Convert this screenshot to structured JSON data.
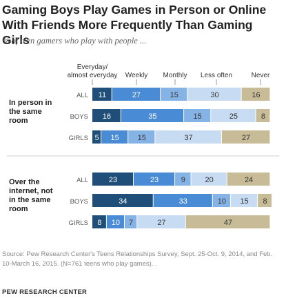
{
  "title": "Gaming Boys Play Games in Person or Online With Friends More Frequently Than Gaming Girls",
  "subtitle": "% of teen gamers who play with people ...",
  "source": "Source: Pew Research Center's Teens Relationships Survey, Sept. 25-Oct. 9, 2014, and Feb. 10-March 16, 2015. (N=761 teens who play games). .",
  "org": "PEW RESEARCH CENTER",
  "chart_data": {
    "type": "bar",
    "stacked": true,
    "orientation": "horizontal",
    "categories": [
      "Everyday/ almost everyday",
      "Weekly",
      "Monthly",
      "Less often",
      "Never"
    ],
    "colors": [
      "#1f4e79",
      "#4a8bd6",
      "#86b3e6",
      "#c7dcf2",
      "#c8bc98"
    ],
    "groups": [
      {
        "label": [
          "In person in",
          "the same",
          "room"
        ],
        "rows": [
          {
            "label": "ALL",
            "values": [
              11,
              27,
              15,
              30,
              16
            ]
          },
          {
            "label": "BOYS",
            "values": [
              16,
              35,
              15,
              25,
              8
            ]
          },
          {
            "label": "GIRLS",
            "values": [
              5,
              15,
              15,
              37,
              27
            ]
          }
        ]
      },
      {
        "label": [
          "Over the",
          "internet, not",
          "in the same",
          "room"
        ],
        "rows": [
          {
            "label": "ALL",
            "values": [
              23,
              23,
              9,
              20,
              24
            ]
          },
          {
            "label": "BOYS",
            "values": [
              34,
              33,
              10,
              15,
              8
            ]
          },
          {
            "label": "GIRLS",
            "values": [
              8,
              10,
              7,
              27,
              47
            ]
          }
        ]
      }
    ]
  }
}
